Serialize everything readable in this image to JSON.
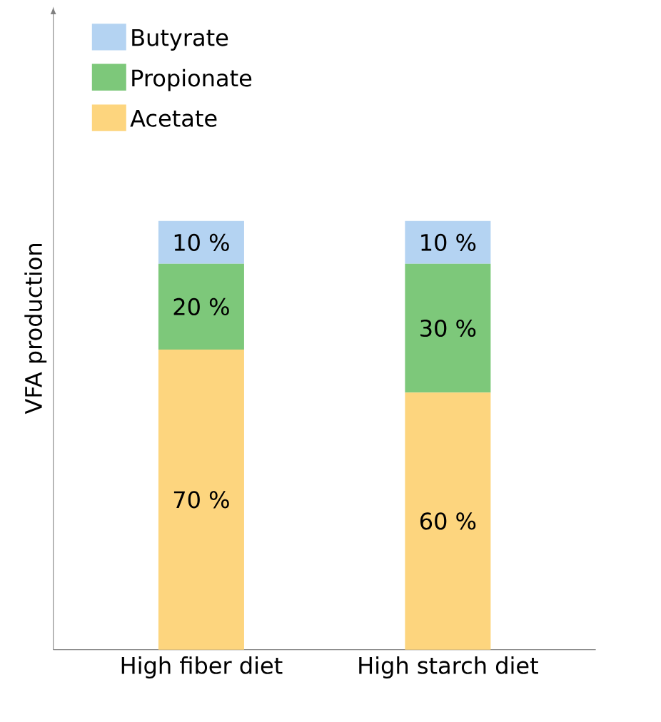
{
  "chart_data": {
    "type": "bar",
    "stacked": true,
    "ylabel": "VFA production",
    "categories": [
      "High fiber diet",
      "High starch diet"
    ],
    "legend": "top left",
    "series": [
      {
        "name": "Acetate",
        "color": "#fdd57e",
        "values": [
          70,
          60
        ],
        "value_labels": [
          "70 %",
          "60 %"
        ]
      },
      {
        "name": "Propionate",
        "color": "#7dc87a",
        "values": [
          20,
          30
        ],
        "value_labels": [
          "20 %",
          "30 %"
        ]
      },
      {
        "name": "Butyrate",
        "color": "#b4d3f2",
        "values": [
          10,
          10
        ],
        "value_labels": [
          "10 %",
          "10 %"
        ]
      }
    ]
  }
}
